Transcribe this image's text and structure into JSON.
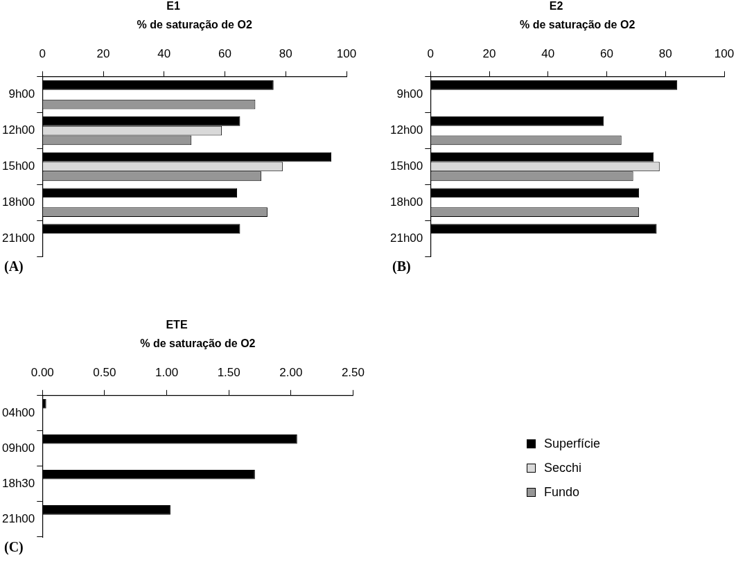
{
  "chart_data": [
    {
      "type": "bar",
      "orientation": "horizontal",
      "title": "E1",
      "xlabel": "% de saturação de O2",
      "categories": [
        "9h00",
        "12h00",
        "15h00",
        "18h00",
        "21h00"
      ],
      "series": [
        {
          "color": "#000000",
          "values": [
            76,
            65,
            95,
            64,
            65
          ]
        },
        {
          "color": "#d9d9d9",
          "values": [
            null,
            59,
            79,
            null,
            null
          ]
        },
        {
          "color": "#969696",
          "values": [
            70,
            49,
            72,
            74,
            null
          ]
        }
      ],
      "xlim": [
        0,
        100
      ],
      "xticks": [
        0,
        20,
        40,
        60,
        80,
        100
      ],
      "grid": false,
      "legend": false,
      "annotations": [
        "(A)"
      ]
    },
    {
      "type": "bar",
      "orientation": "horizontal",
      "title": "E2",
      "xlabel": "% de saturação de O2",
      "categories": [
        "9h00",
        "12h00",
        "15h00",
        "18h00",
        "21h00"
      ],
      "series": [
        {
          "color": "#000000",
          "values": [
            84,
            59,
            76,
            71,
            77
          ]
        },
        {
          "color": "#d9d9d9",
          "values": [
            null,
            null,
            78,
            null,
            null
          ]
        },
        {
          "color": "#969696",
          "values": [
            null,
            65,
            69,
            71,
            null
          ]
        }
      ],
      "xlim": [
        0,
        100
      ],
      "xticks": [
        0,
        20,
        40,
        60,
        80,
        100
      ],
      "grid": false,
      "legend": false,
      "annotations": [
        "(B)"
      ]
    },
    {
      "type": "bar",
      "orientation": "horizontal",
      "title": "ETE",
      "xlabel": "% de saturação de O2",
      "categories": [
        "04h00",
        "09h00",
        "18h30",
        "21h00"
      ],
      "series": [
        {
          "name": "Superfície",
          "color": "#000000",
          "values": [
            0.03,
            2.05,
            1.71,
            1.03
          ]
        },
        {
          "name": "Secchi",
          "color": "#d9d9d9",
          "values": [
            null,
            null,
            null,
            null
          ]
        },
        {
          "name": "Fundo",
          "color": "#969696",
          "values": [
            null,
            null,
            null,
            null
          ]
        }
      ],
      "xlim": [
        0,
        2.5
      ],
      "xticks": [
        {
          "value": 0,
          "label": "0.00"
        },
        {
          "value": 0.5,
          "label": "0.50"
        },
        {
          "value": 1,
          "label": "1.00"
        },
        {
          "value": 1.5,
          "label": "1.50"
        },
        {
          "value": 2,
          "label": "2.00"
        },
        {
          "value": 2.5,
          "label": "2.50"
        }
      ],
      "grid": false,
      "legend": "right",
      "annotations": [
        "(C)"
      ]
    }
  ]
}
